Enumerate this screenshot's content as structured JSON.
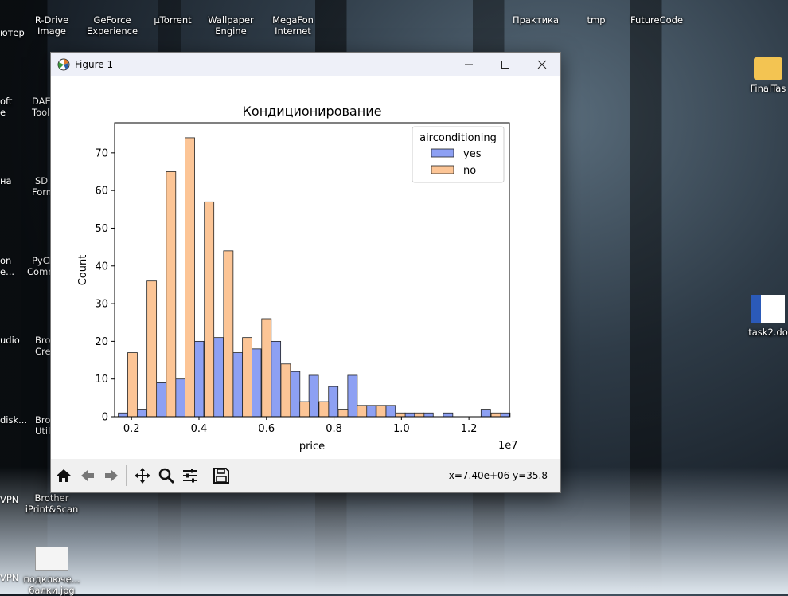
{
  "desktop": {
    "top_icons": [
      {
        "label": "R-Drive\nImage",
        "l1": "R-Drive",
        "l2": "Image"
      },
      {
        "label": "GeForce Experience",
        "l1": "GeForce",
        "l2": "Experience"
      },
      {
        "label": "µTorrent",
        "l1": "µTorrent",
        "l2": ""
      },
      {
        "label": "Wallpaper Engine",
        "l1": "Wallpaper",
        "l2": "Engine"
      },
      {
        "label": "MegaFon Internet",
        "l1": "MegaFon",
        "l2": "Internet"
      }
    ],
    "left_edge_labels": [
      "ютер",
      "oft",
      "е",
      "на",
      "on",
      "е...",
      "udio",
      "disk...",
      "VPN",
      "VPN"
    ],
    "col2_labels": [
      "DAE",
      "Tools",
      "SD C",
      "Form",
      "PyCh",
      "Comm",
      "Bro",
      "Cre",
      "Bro",
      "Util"
    ],
    "brother": {
      "l1": "Brother",
      "l2": "iPrint&Scan"
    },
    "jpg": {
      "l1": "подключе...",
      "l2": "балки.jpg"
    },
    "right_top": [
      "Практика",
      "tmp",
      "FutureCode"
    ],
    "final": "FinalTas",
    "docx": "task2.do"
  },
  "window": {
    "title": "Figure 1",
    "coords": "x=7.40e+06 y=35.8"
  },
  "colors": {
    "yes": "#8da0f3",
    "no": "#fcc596",
    "edge": "#222222"
  },
  "chart_data": {
    "type": "bar",
    "title": "Кондиционирование",
    "xlabel": "price",
    "ylabel": "Count",
    "x_offset_label": "1e7",
    "legend_title": "airconditioning",
    "legend_placement": "top-right",
    "xlim": [
      0.15,
      1.32
    ],
    "ylim": [
      0,
      78
    ],
    "x_ticks": [
      0.2,
      0.4,
      0.6,
      0.8,
      1.0,
      1.2
    ],
    "x_tick_labels": [
      "0.2",
      "0.4",
      "0.6",
      "0.8",
      "1.0",
      "1.2"
    ],
    "y_ticks": [
      0,
      10,
      20,
      30,
      40,
      50,
      60,
      70
    ],
    "bin_width": 0.0565,
    "series": [
      {
        "name": "yes",
        "bins": [
          {
            "x": 0.175,
            "count": 1
          },
          {
            "x": 0.23,
            "count": 2
          },
          {
            "x": 0.288,
            "count": 9
          },
          {
            "x": 0.345,
            "count": 10
          },
          {
            "x": 0.4,
            "count": 20
          },
          {
            "x": 0.458,
            "count": 21
          },
          {
            "x": 0.515,
            "count": 17
          },
          {
            "x": 0.57,
            "count": 18
          },
          {
            "x": 0.628,
            "count": 20
          },
          {
            "x": 0.685,
            "count": 12
          },
          {
            "x": 0.74,
            "count": 11
          },
          {
            "x": 0.798,
            "count": 8
          },
          {
            "x": 0.855,
            "count": 11
          },
          {
            "x": 0.91,
            "count": 3
          },
          {
            "x": 0.968,
            "count": 3
          },
          {
            "x": 1.025,
            "count": 1
          },
          {
            "x": 1.08,
            "count": 1
          },
          {
            "x": 1.138,
            "count": 1
          },
          {
            "x": 1.25,
            "count": 2
          },
          {
            "x": 1.308,
            "count": 1
          }
        ]
      },
      {
        "name": "no",
        "bins": [
          {
            "x": 0.203,
            "count": 17
          },
          {
            "x": 0.26,
            "count": 36
          },
          {
            "x": 0.317,
            "count": 65
          },
          {
            "x": 0.373,
            "count": 74
          },
          {
            "x": 0.43,
            "count": 57
          },
          {
            "x": 0.487,
            "count": 44
          },
          {
            "x": 0.543,
            "count": 21
          },
          {
            "x": 0.6,
            "count": 26
          },
          {
            "x": 0.657,
            "count": 14
          },
          {
            "x": 0.713,
            "count": 4
          },
          {
            "x": 0.77,
            "count": 4
          },
          {
            "x": 0.827,
            "count": 2
          },
          {
            "x": 0.883,
            "count": 3
          },
          {
            "x": 0.94,
            "count": 3
          },
          {
            "x": 0.997,
            "count": 1
          },
          {
            "x": 1.053,
            "count": 1
          },
          {
            "x": 1.28,
            "count": 1
          }
        ]
      }
    ]
  }
}
